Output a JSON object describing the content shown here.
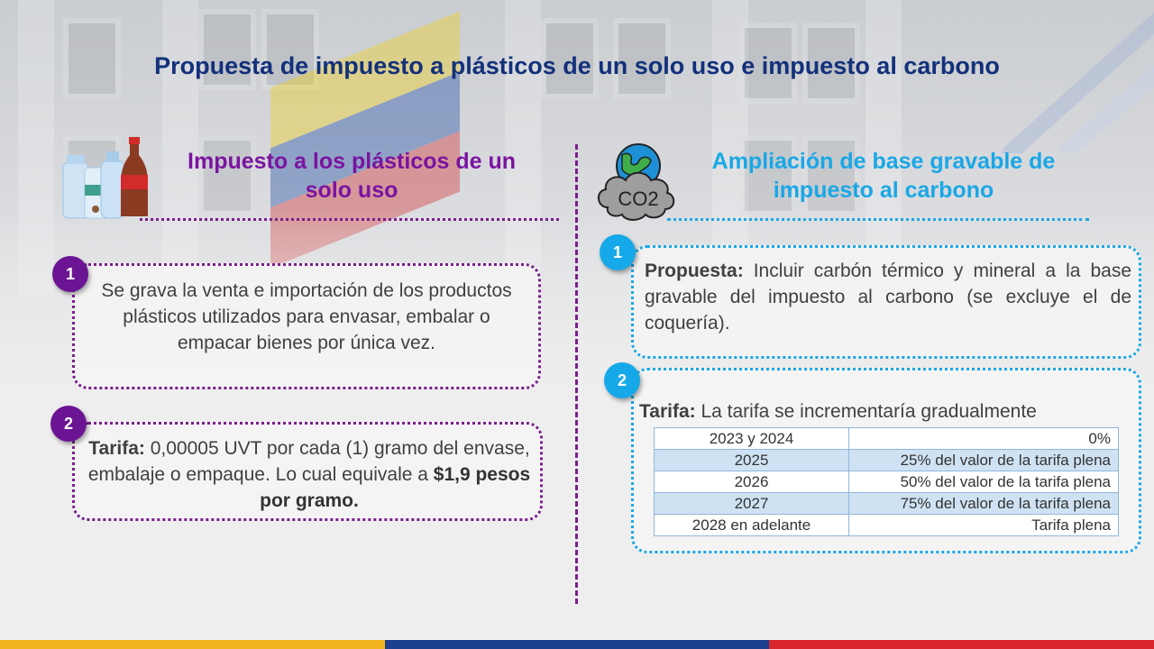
{
  "title": "Propuesta de impuesto a plásticos de un solo uso e impuesto al carbono",
  "left": {
    "heading": "Impuesto a los plásticos de un solo uso",
    "icon": "plastic-bottles-icon",
    "items": [
      {
        "number": "1",
        "text": "Se grava la venta e importación de los productos plásticos utilizados para envasar, embalar o empacar bienes por única vez."
      },
      {
        "number": "2",
        "label": "Tarifa:",
        "text": " 0,00005 UVT por cada (1) gramo del envase, embalaje o empaque. Lo cual equivale a ",
        "highlight": "$1,9 pesos por gramo."
      }
    ]
  },
  "right": {
    "heading": "Ampliación de base gravable de impuesto al carbono",
    "icon": "co2-cloud-globe-icon",
    "cloud_text": "CO2",
    "items": [
      {
        "number": "1",
        "label": "Propuesta:",
        "text": " Incluir carbón térmico y mineral a la base gravable del impuesto al carbono (se excluye el de coquería)."
      },
      {
        "number": "2",
        "label": "Tarifa:",
        "text": " La tarifa se incrementaría gradualmente"
      }
    ],
    "table": [
      {
        "year": "2023 y 2024",
        "value": "0%"
      },
      {
        "year": "2025",
        "value": "25% del valor de la tarifa plena"
      },
      {
        "year": "2026",
        "value": "50% del valor de la tarifa plena"
      },
      {
        "year": "2027",
        "value": "75% del valor de la tarifa plena"
      },
      {
        "year": "2028 en adelante",
        "value": "Tarifa plena"
      }
    ]
  },
  "colors": {
    "title": "#13307a",
    "purple": "#7a14a0",
    "blue": "#1aa7e6",
    "footer": [
      "#f2b41c",
      "#1d3f8f",
      "#d8262c"
    ]
  }
}
